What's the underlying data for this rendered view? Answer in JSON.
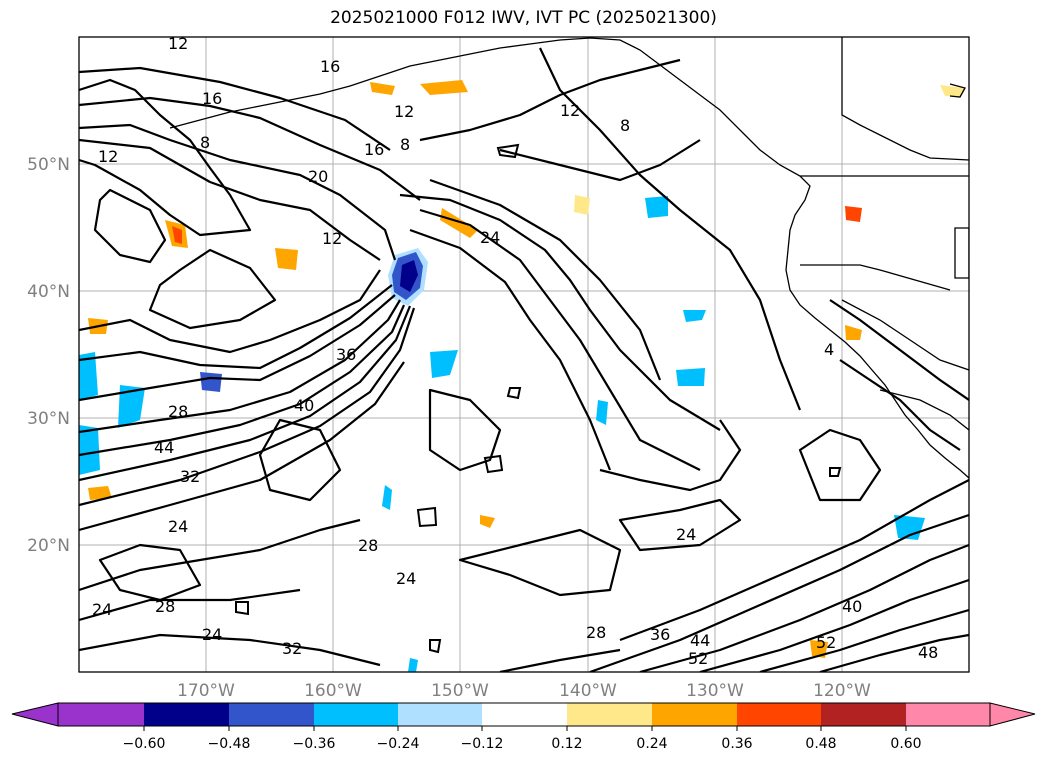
{
  "title": "2025021000 F012 IWV, IVT PC (2025021300)",
  "map": {
    "projection": "PlateCarree",
    "lon_range": [
      -180,
      -110
    ],
    "lat_range": [
      10,
      60
    ],
    "lat_ticks": [
      "50°N",
      "40°N",
      "30°N",
      "20°N"
    ],
    "lon_ticks": [
      "170°W",
      "160°W",
      "150°W",
      "140°W",
      "130°W",
      "120°W"
    ],
    "gridlines": true,
    "coastlines": true,
    "contour_labels": [
      "12",
      "16",
      "16",
      "12",
      "12",
      "8",
      "16",
      "20",
      "12",
      "8",
      "8",
      "12",
      "24",
      "36",
      "40",
      "28",
      "44",
      "32",
      "24",
      "28",
      "24",
      "28",
      "24",
      "24",
      "32",
      "28",
      "36",
      "44",
      "52",
      "24",
      "40",
      "52",
      "48",
      "4"
    ]
  },
  "colorbar": {
    "extend": "both",
    "tick_labels": [
      "−0.60",
      "−0.48",
      "−0.36",
      "−0.24",
      "−0.12",
      "0.12",
      "0.24",
      "0.36",
      "0.48",
      "0.60"
    ],
    "colors": [
      "#9933cc",
      "#00008b",
      "#3355cc",
      "#00bfff",
      "#b0e0ff",
      "#ffffff",
      "#ffe88a",
      "#ffa500",
      "#ff4500",
      "#b22222",
      "#ff88aa"
    ]
  }
}
